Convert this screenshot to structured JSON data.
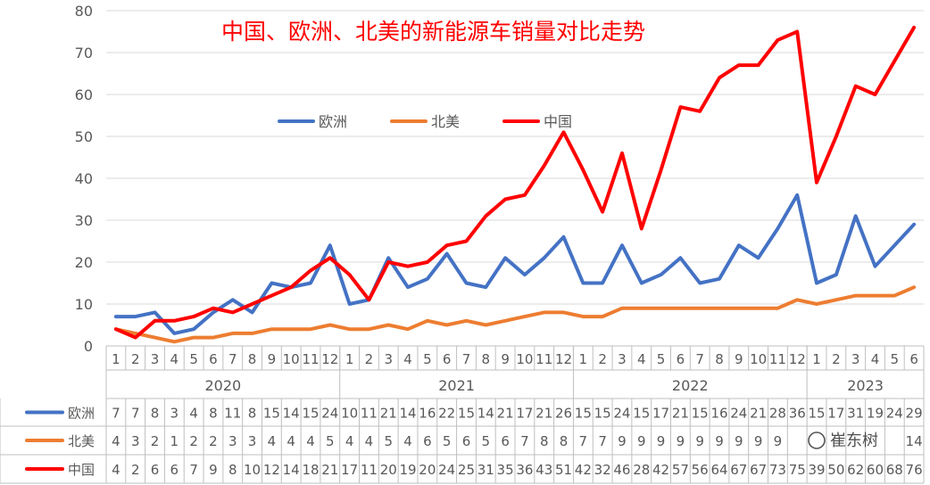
{
  "chart_data": {
    "type": "line",
    "title": "中国、欧洲、北美的新能源车销量对比走势",
    "ylim": [
      0,
      80
    ],
    "yticks": [
      0,
      10,
      20,
      30,
      40,
      50,
      60,
      70,
      80
    ],
    "grid": true,
    "legend_position": "top-left",
    "years": [
      {
        "label": "2020",
        "months": 12
      },
      {
        "label": "2021",
        "months": 12
      },
      {
        "label": "2022",
        "months": 12
      },
      {
        "label": "2023",
        "months": 6
      }
    ],
    "categories": [
      "1",
      "2",
      "3",
      "4",
      "5",
      "6",
      "7",
      "8",
      "9",
      "10",
      "11",
      "12",
      "1",
      "2",
      "3",
      "4",
      "5",
      "6",
      "7",
      "8",
      "9",
      "10",
      "11",
      "12",
      "1",
      "2",
      "3",
      "4",
      "5",
      "6",
      "7",
      "8",
      "9",
      "10",
      "11",
      "12",
      "1",
      "2",
      "3",
      "4",
      "5",
      "6"
    ],
    "series": [
      {
        "name": "欧洲",
        "color": "#4472c4",
        "values": [
          7,
          7,
          8,
          3,
          4,
          8,
          11,
          8,
          15,
          14,
          15,
          24,
          10,
          11,
          21,
          14,
          16,
          22,
          15,
          14,
          21,
          17,
          21,
          26,
          15,
          15,
          24,
          15,
          17,
          21,
          15,
          16,
          24,
          21,
          28,
          36,
          15,
          17,
          31,
          19,
          24,
          29
        ],
        "labels": [
          "7",
          "7",
          "8",
          "3",
          "4",
          "8",
          "11",
          "8",
          "15",
          "14",
          "15",
          "24",
          "10",
          "11",
          "21",
          "14",
          "16",
          "22",
          "15",
          "14",
          "21",
          "17",
          "21",
          "26",
          "15",
          "15",
          "24",
          "15",
          "17",
          "21",
          "15",
          "16",
          "24",
          "21",
          "28",
          "36",
          "15",
          "17",
          "31",
          "19",
          "24",
          "29"
        ]
      },
      {
        "name": "北美",
        "color": "#ed7d31",
        "values": [
          4,
          3,
          2,
          1,
          2,
          2,
          3,
          3,
          4,
          4,
          4,
          5,
          4,
          4,
          5,
          4,
          6,
          5,
          6,
          5,
          6,
          7,
          8,
          8,
          7,
          7,
          9,
          9,
          9,
          9,
          9,
          9,
          9,
          9,
          9,
          11,
          10,
          11,
          12,
          12,
          12,
          14
        ],
        "labels": [
          "4",
          "3",
          "2",
          "1",
          "2",
          "2",
          "3",
          "3",
          "4",
          "4",
          "4",
          "5",
          "4",
          "4",
          "5",
          "4",
          "6",
          "5",
          "6",
          "5",
          "6",
          "7",
          "8",
          "8",
          "7",
          "7",
          "9",
          "9",
          "9",
          "9",
          "9",
          "9",
          "9",
          "9",
          "9",
          "",
          "",
          "",
          "",
          "",
          "",
          "14"
        ]
      },
      {
        "name": "中国",
        "color": "#ff0000",
        "values": [
          4,
          2,
          6,
          6,
          7,
          9,
          8,
          10,
          12,
          14,
          18,
          21,
          17,
          11,
          20,
          19,
          20,
          24,
          25,
          31,
          35,
          36,
          43,
          51,
          42,
          32,
          46,
          28,
          42,
          57,
          56,
          64,
          67,
          67,
          73,
          75,
          39,
          50,
          62,
          60,
          68,
          76
        ],
        "labels": [
          "4",
          "2",
          "6",
          "6",
          "7",
          "9",
          "8",
          "10",
          "12",
          "14",
          "18",
          "21",
          "17",
          "11",
          "20",
          "19",
          "20",
          "24",
          "25",
          "31",
          "35",
          "36",
          "43",
          "51",
          "42",
          "32",
          "46",
          "28",
          "42",
          "57",
          "56",
          "64",
          "67",
          "67",
          "73",
          "75",
          "39",
          "50",
          "62",
          "60",
          "68",
          "76"
        ]
      }
    ]
  },
  "watermark": {
    "text": "崔东树"
  }
}
